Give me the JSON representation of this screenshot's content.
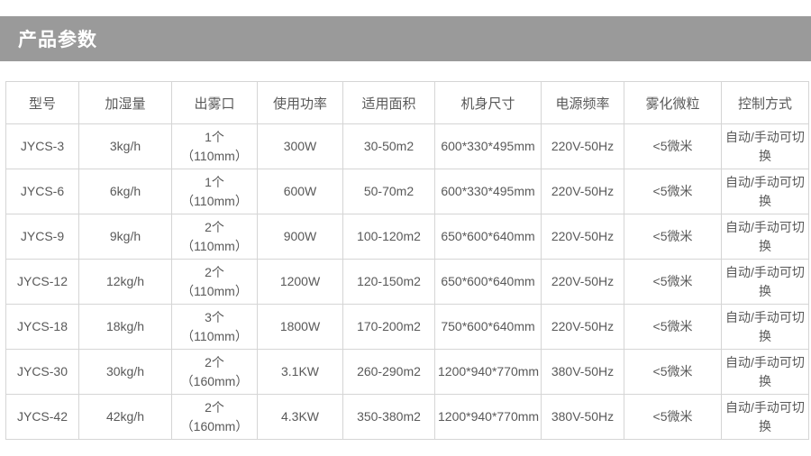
{
  "page": {
    "title": "产品参数"
  },
  "colors": {
    "title_bar_bg": "#9a9a9a",
    "title_text": "#ffffff",
    "border": "#d5d5d5",
    "cell_text": "#595959",
    "page_bg": "#ffffff"
  },
  "table": {
    "columns": [
      {
        "key": "model",
        "label": "型号"
      },
      {
        "key": "humidification",
        "label": "加湿量"
      },
      {
        "key": "mist_outlet",
        "label": "出雾口"
      },
      {
        "key": "power",
        "label": "使用功率"
      },
      {
        "key": "area",
        "label": "适用面积"
      },
      {
        "key": "dimensions",
        "label": "机身尺寸"
      },
      {
        "key": "frequency",
        "label": "电源频率"
      },
      {
        "key": "particles",
        "label": "雾化微粒"
      },
      {
        "key": "control",
        "label": "控制方式"
      }
    ],
    "rows": [
      [
        "JYCS-3",
        "3kg/h",
        "1个\n（110mm）",
        "300W",
        "30-50m2",
        "600*330*495mm",
        "220V-50Hz",
        "<5微米",
        "自动/手动可切换"
      ],
      [
        "JYCS-6",
        "6kg/h",
        "1个\n（110mm）",
        "600W",
        "50-70m2",
        "600*330*495mm",
        "220V-50Hz",
        "<5微米",
        "自动/手动可切换"
      ],
      [
        "JYCS-9",
        "9kg/h",
        "2个\n（110mm）",
        "900W",
        "100-120m2",
        "650*600*640mm",
        "220V-50Hz",
        "<5微米",
        "自动/手动可切换"
      ],
      [
        "JYCS-12",
        "12kg/h",
        "2个\n（110mm）",
        "1200W",
        "120-150m2",
        "650*600*640mm",
        "220V-50Hz",
        "<5微米",
        "自动/手动可切换"
      ],
      [
        "JYCS-18",
        "18kg/h",
        "3个\n（110mm）",
        "1800W",
        "170-200m2",
        "750*600*640mm",
        "220V-50Hz",
        "<5微米",
        "自动/手动可切换"
      ],
      [
        "JYCS-30",
        "30kg/h",
        "2个\n（160mm）",
        "3.1KW",
        "260-290m2",
        "1200*940*770mm",
        "380V-50Hz",
        "<5微米",
        "自动/手动可切换"
      ],
      [
        "JYCS-42",
        "42kg/h",
        "2个\n（160mm）",
        "4.3KW",
        "350-380m2",
        "1200*940*770mm",
        "380V-50Hz",
        "<5微米",
        "自动/手动可切换"
      ]
    ]
  }
}
